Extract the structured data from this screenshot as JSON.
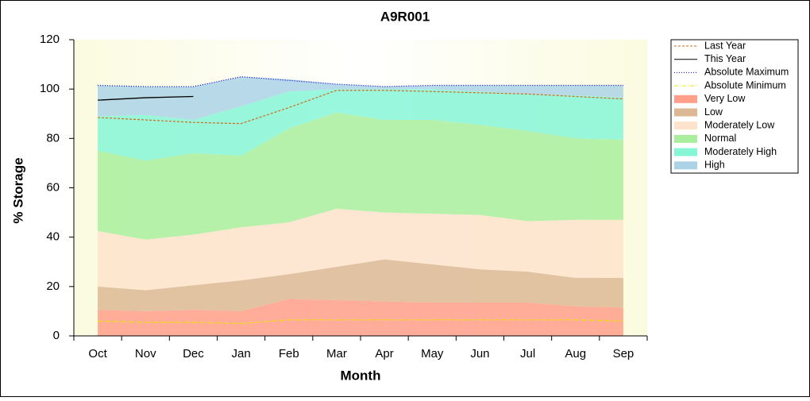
{
  "chart_data": {
    "type": "stacked-area-line",
    "title": "A9R001",
    "x_label": "Month",
    "y_label": "% Storage",
    "categories": [
      "Oct",
      "Nov",
      "Dec",
      "Jan",
      "Feb",
      "Mar",
      "Apr",
      "May",
      "Jun",
      "Jul",
      "Aug",
      "Sep"
    ],
    "ylim": [
      0,
      120
    ],
    "yticks": [
      0,
      20,
      40,
      60,
      80,
      100,
      120
    ],
    "series": [
      {
        "name": "Last Year",
        "kind": "line",
        "style": "dashed",
        "color": "#d2691e",
        "values": [
          88.5,
          87.5,
          86.5,
          86,
          92.5,
          99.5,
          99.5,
          99,
          98.5,
          98,
          97,
          96
        ]
      },
      {
        "name": "This Year",
        "kind": "line",
        "style": "solid",
        "color": "#000000",
        "values": [
          95.5,
          96.5,
          97,
          null,
          null,
          null,
          null,
          null,
          null,
          null,
          null,
          null
        ]
      },
      {
        "name": "Absolute Maximum",
        "kind": "line",
        "style": "dotted",
        "color": "#0000cc",
        "values": [
          101.5,
          101,
          101,
          105,
          103.5,
          102,
          101,
          101.5,
          101.5,
          101.5,
          101.5,
          101.5
        ]
      },
      {
        "name": "Absolute Minimum",
        "kind": "line",
        "style": "dashdot",
        "color": "#e6e600",
        "values": [
          6,
          5.5,
          5.5,
          5,
          6.5,
          6.5,
          6.5,
          6.5,
          6.5,
          6.5,
          6.5,
          6
        ]
      },
      {
        "name": "Very Low",
        "kind": "area",
        "color": "#ff9f8a",
        "values": [
          10.5,
          10,
          10.5,
          10,
          15,
          14.5,
          14,
          13.5,
          13.5,
          13.5,
          12,
          11.5
        ]
      },
      {
        "name": "Low",
        "kind": "area",
        "color": "#dcb894",
        "values": [
          9.5,
          8.5,
          10,
          12.5,
          10,
          13.5,
          17,
          15.5,
          13.5,
          12.5,
          11.5,
          12
        ]
      },
      {
        "name": "Moderately Low",
        "kind": "area",
        "color": "#fde3cb",
        "values": [
          22.5,
          20.5,
          20.5,
          21.5,
          21,
          23.5,
          19,
          20.5,
          22,
          20.5,
          23.5,
          23.5
        ]
      },
      {
        "name": "Normal",
        "kind": "area",
        "color": "#a8ee9c",
        "values": [
          32.5,
          32,
          33,
          29,
          38,
          39,
          37.5,
          38,
          36.5,
          36.5,
          33,
          32.5
        ]
      },
      {
        "name": "Moderately High",
        "kind": "area",
        "color": "#86f6d6",
        "values": [
          14,
          18.5,
          13.5,
          20,
          15,
          9.5,
          12.5,
          12.5,
          13.5,
          15,
          17.5,
          17
        ]
      },
      {
        "name": "High",
        "kind": "area",
        "color": "#acd2e6",
        "values": [
          12.5,
          11.5,
          13.5,
          12,
          5,
          2,
          1,
          1.5,
          2.5,
          3.5,
          4,
          5
        ]
      }
    ]
  }
}
